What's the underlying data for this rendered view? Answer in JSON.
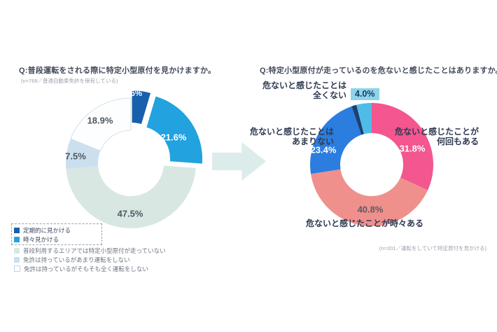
{
  "page": {
    "background": "#ffffff"
  },
  "left_panel": {
    "title": "Q:普段運転をされる際に特定小型原付を見かけますか。",
    "note": "(n=769／普通自動車免許を保有している)"
  },
  "right_panel": {
    "title": "Q:特定小型原付が走っているのを危ないと感じたことはありますか。",
    "note": "(n=201／運転をしていて特定原付を見かける)",
    "annotations": {
      "none": {
        "line1": "危ないと感じたことは",
        "line2": "全くない",
        "value": "4.0%",
        "highlight_color": "#8ed4ea"
      },
      "many": {
        "line1": "危ないと感じたことが",
        "line2": "何回もある"
      },
      "few": {
        "line1": "危ないと感じたことは",
        "line2": "あまりない"
      },
      "sometimes": {
        "text": "危ないと感じたことが時々ある"
      }
    }
  },
  "chart_data": [
    {
      "type": "pie",
      "subtype": "donut",
      "title": "Q:普段運転をされる際に特定小型原付を見かけますか。",
      "note": "(n=769／普通自動車免許を保有している)",
      "categories": [
        "定期的に見かける",
        "時々見かける",
        "普段利用するエリアでは特定小型原付が走っていない",
        "免許は持っているがあまり運転をしない",
        "免許は持っているがそもそも全く運転をしない"
      ],
      "values": [
        4.6,
        21.6,
        47.5,
        7.5,
        18.9
      ],
      "value_labels": [
        "4.6%",
        "21.6%",
        "47.5%",
        "7.5%",
        "18.9%"
      ],
      "colors": [
        "#1860ac",
        "#22a2df",
        "#d9e7e3",
        "#cbdfee",
        "#fdfeff"
      ],
      "exploded_segments": [
        "定期的に見かける",
        "時々見かける"
      ],
      "legend_position": "bottom-left",
      "start_angle_deg": -90,
      "direction": "clockwise"
    },
    {
      "type": "pie",
      "subtype": "donut",
      "title": "Q:特定小型原付が走っているのを危ないと感じたことはありますか。",
      "note": "(n=201／運転をしていて特定原付を見かける)",
      "categories": [
        "危ないと感じたことが何回もある",
        "危ないと感じたことが時々ある",
        "危ないと感じたことはあまりない",
        "危ないと感じたことは全くない"
      ],
      "values": [
        31.8,
        40.8,
        23.4,
        4.0
      ],
      "value_labels": [
        "31.8%",
        "40.8%",
        "23.4%",
        "4.0%"
      ],
      "colors": [
        "#f4568f",
        "#ef908d",
        "#2b7de0",
        "#4fbce8"
      ],
      "legend_position": "callout-labels",
      "start_angle_deg": -90,
      "direction": "clockwise"
    }
  ]
}
